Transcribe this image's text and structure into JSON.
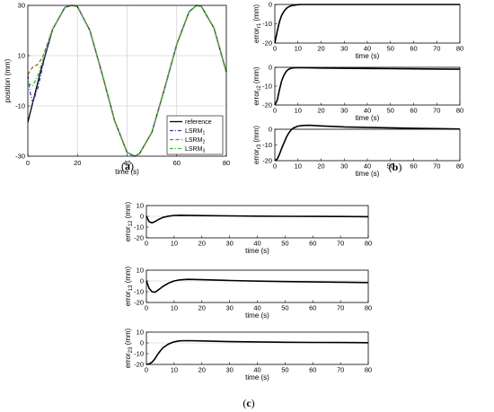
{
  "figure": {
    "panel_labels": {
      "a": "(a)",
      "b": "(b)",
      "c": "(c)"
    }
  },
  "colors": {
    "reference": "#000000",
    "lsrm1": "#4b2bd6",
    "lsrm2": "#a06a18",
    "lsrm3": "#22c72a",
    "grid": "#c8c8c8"
  },
  "chart_data": [
    {
      "id": "a",
      "type": "line",
      "xlabel": "time (s)",
      "ylabel": "position (mm)",
      "xlim": [
        0,
        80
      ],
      "ylim": [
        -30,
        30
      ],
      "xticks": [
        0,
        20,
        40,
        60,
        80
      ],
      "yticks": [
        -30,
        -10,
        10,
        30
      ],
      "grid": true,
      "legend_position": "bottom-right",
      "series": [
        {
          "name": "reference",
          "color": "#000000",
          "dash": "solid",
          "x": [
            0,
            5,
            10,
            15,
            18,
            20,
            25,
            30,
            35,
            40,
            43,
            45,
            50,
            55,
            60,
            65,
            68,
            70,
            75,
            80
          ],
          "y": [
            -16.5,
            3.2,
            20.5,
            29.3,
            30.0,
            29.5,
            20.0,
            2.5,
            -16.0,
            -28.5,
            -30.0,
            -29.0,
            -20.5,
            -3.5,
            14.5,
            27.5,
            30.0,
            29.5,
            21.0,
            3.5
          ]
        },
        {
          "name": "LSRM1",
          "legend_sub": "1",
          "color": "#4b2bd6",
          "dash": "dashdot",
          "x": [
            0,
            1,
            2,
            4,
            7,
            10,
            15,
            18,
            20,
            25,
            30,
            35,
            40,
            43,
            45,
            50,
            55,
            60,
            65,
            68,
            70,
            75,
            80
          ],
          "y": [
            2,
            -5,
            -8.5,
            -3,
            10,
            20.5,
            29.3,
            30.0,
            29.5,
            20.0,
            2.5,
            -16.0,
            -28.5,
            -30.0,
            -29.0,
            -20.5,
            -3.5,
            14.5,
            27.5,
            30.0,
            29.5,
            21.0,
            3.5
          ]
        },
        {
          "name": "LSRM2",
          "legend_sub": "2",
          "color": "#a06a18",
          "dash": "dashed",
          "x": [
            0,
            2,
            4,
            6,
            8,
            10,
            15,
            18,
            20,
            25,
            30,
            35,
            40,
            43,
            45,
            50,
            55,
            60,
            65,
            68,
            70,
            75,
            80
          ],
          "y": [
            2.5,
            5.5,
            6.5,
            9.5,
            15,
            20.5,
            29.3,
            30.0,
            29.5,
            20.0,
            2.5,
            -16.0,
            -28.5,
            -30.0,
            -29.0,
            -20.5,
            -3.5,
            14.5,
            27.5,
            30.0,
            29.5,
            21.0,
            3.5
          ]
        },
        {
          "name": "LSRM3",
          "legend_sub": "3",
          "color": "#22c72a",
          "dash": "dashdot",
          "x": [
            0,
            2,
            4,
            6,
            8,
            10,
            15,
            18,
            20,
            25,
            30,
            35,
            40,
            43,
            45,
            50,
            55,
            60,
            65,
            68,
            70,
            75,
            80
          ],
          "y": [
            -1,
            -2,
            2,
            8,
            15,
            20.5,
            29.3,
            30.0,
            29.5,
            20.0,
            2.5,
            -16.0,
            -28.5,
            -30.0,
            -29.0,
            -20.5,
            -3.5,
            14.5,
            27.5,
            30.0,
            29.5,
            21.0,
            3.5
          ]
        }
      ]
    },
    {
      "id": "b1",
      "type": "line",
      "xlabel": "time (s)",
      "ylabel": "error",
      "ylabel_sub": "r1",
      "unit": "(mm)",
      "xlim": [
        0,
        80
      ],
      "ylim": [
        -20,
        0
      ],
      "xticks": [
        0,
        10,
        20,
        30,
        40,
        50,
        60,
        70,
        80
      ],
      "yticks": [
        -20,
        -10,
        0
      ],
      "series": [
        {
          "color": "#000000",
          "x": [
            0,
            1,
            2,
            3,
            4,
            5,
            6,
            7,
            8,
            10,
            12,
            15,
            20,
            30,
            40,
            50,
            60,
            70,
            80
          ],
          "y": [
            -20,
            -14,
            -9,
            -5.5,
            -3.5,
            -2,
            -1.2,
            -0.7,
            -0.4,
            -0.1,
            0,
            0,
            0,
            0,
            0,
            0,
            0,
            0,
            0
          ]
        }
      ]
    },
    {
      "id": "b2",
      "type": "line",
      "xlabel": "time (s)",
      "ylabel": "error",
      "ylabel_sub": "r2",
      "unit": "(mm)",
      "xlim": [
        0,
        80
      ],
      "ylim": [
        -20,
        0
      ],
      "xticks": [
        0,
        10,
        20,
        30,
        40,
        50,
        60,
        70,
        80
      ],
      "yticks": [
        -20,
        -10,
        0
      ],
      "series": [
        {
          "color": "#000000",
          "x": [
            0,
            1,
            2,
            3,
            4,
            5,
            6,
            7,
            8,
            10,
            12,
            15,
            20,
            30,
            40,
            50,
            60,
            70,
            80
          ],
          "y": [
            -20,
            -17.5,
            -12,
            -7,
            -4,
            -2,
            -1,
            -0.5,
            -0.3,
            -0.2,
            -0.2,
            -0.3,
            -0.4,
            -0.5,
            -0.6,
            -0.7,
            -0.8,
            -0.9,
            -1
          ]
        }
      ]
    },
    {
      "id": "b3",
      "type": "line",
      "xlabel": "time (s)",
      "ylabel": "error",
      "ylabel_sub": "r3",
      "unit": "(mm)",
      "xlim": [
        0,
        80
      ],
      "ylim": [
        -20,
        0
      ],
      "xticks": [
        0,
        10,
        20,
        30,
        40,
        50,
        60,
        70,
        80
      ],
      "yticks": [
        -20,
        -10,
        0
      ],
      "series": [
        {
          "color": "#000000",
          "x": [
            0,
            1,
            2,
            3,
            4,
            5,
            6,
            7,
            8,
            10,
            12,
            15,
            20,
            30,
            40,
            50,
            60,
            70,
            80
          ],
          "y": [
            -20,
            -19,
            -16,
            -12,
            -8.5,
            -5,
            -2.5,
            -0.5,
            0.8,
            2,
            2.4,
            2.5,
            2.1,
            1.5,
            1.2,
            0.9,
            0.6,
            0.4,
            0.2
          ]
        }
      ]
    },
    {
      "id": "c1",
      "type": "line",
      "xlabel": "time (s)",
      "ylabel": "error",
      "ylabel_sub": "12",
      "unit": "(mm)",
      "xlim": [
        0,
        80
      ],
      "ylim": [
        -20,
        10
      ],
      "xticks": [
        0,
        10,
        20,
        30,
        40,
        50,
        60,
        70,
        80
      ],
      "yticks": [
        -20,
        -10,
        0,
        10
      ],
      "series": [
        {
          "color": "#000000",
          "x": [
            0,
            1,
            2,
            3,
            4,
            5,
            6,
            8,
            10,
            12,
            15,
            20,
            30,
            40,
            50,
            60,
            70,
            80
          ],
          "y": [
            0,
            -5,
            -6,
            -5,
            -3.5,
            -2.2,
            -1,
            0.2,
            0.8,
            1,
            0.9,
            0.7,
            0.4,
            0.2,
            0,
            -0.1,
            -0.2,
            -0.3
          ]
        }
      ]
    },
    {
      "id": "c2",
      "type": "line",
      "xlabel": "time (s)",
      "ylabel": "error",
      "ylabel_sub": "13",
      "unit": "(mm)",
      "xlim": [
        0,
        80
      ],
      "ylim": [
        -20,
        10
      ],
      "xticks": [
        0,
        10,
        20,
        30,
        40,
        50,
        60,
        70,
        80
      ],
      "yticks": [
        -20,
        -10,
        0,
        10
      ],
      "series": [
        {
          "color": "#000000",
          "x": [
            0,
            1,
            2,
            3,
            4,
            5,
            6,
            8,
            10,
            12,
            15,
            20,
            30,
            40,
            50,
            60,
            70,
            80
          ],
          "y": [
            0,
            -7,
            -10,
            -10.5,
            -9,
            -7,
            -5,
            -2,
            0,
            1,
            1.5,
            1.2,
            0.4,
            -0.2,
            -0.6,
            -0.9,
            -1.2,
            -1.5
          ]
        }
      ]
    },
    {
      "id": "c3",
      "type": "line",
      "xlabel": "time (s)",
      "ylabel": "error",
      "ylabel_sub": "23",
      "unit": "(mm)",
      "xlim": [
        0,
        80
      ],
      "ylim": [
        -20,
        10
      ],
      "xticks": [
        0,
        10,
        20,
        30,
        40,
        50,
        60,
        70,
        80
      ],
      "yticks": [
        -20,
        -10,
        0,
        10
      ],
      "series": [
        {
          "color": "#000000",
          "x": [
            0,
            1,
            2,
            3,
            4,
            5,
            6,
            8,
            10,
            12,
            15,
            20,
            30,
            40,
            50,
            60,
            70,
            80
          ],
          "y": [
            -20,
            -19.5,
            -18,
            -15,
            -11,
            -7.5,
            -4.5,
            -1,
            1,
            1.9,
            2.1,
            1.8,
            1.2,
            0.9,
            0.6,
            0.4,
            0.3,
            0.2
          ]
        }
      ]
    }
  ]
}
